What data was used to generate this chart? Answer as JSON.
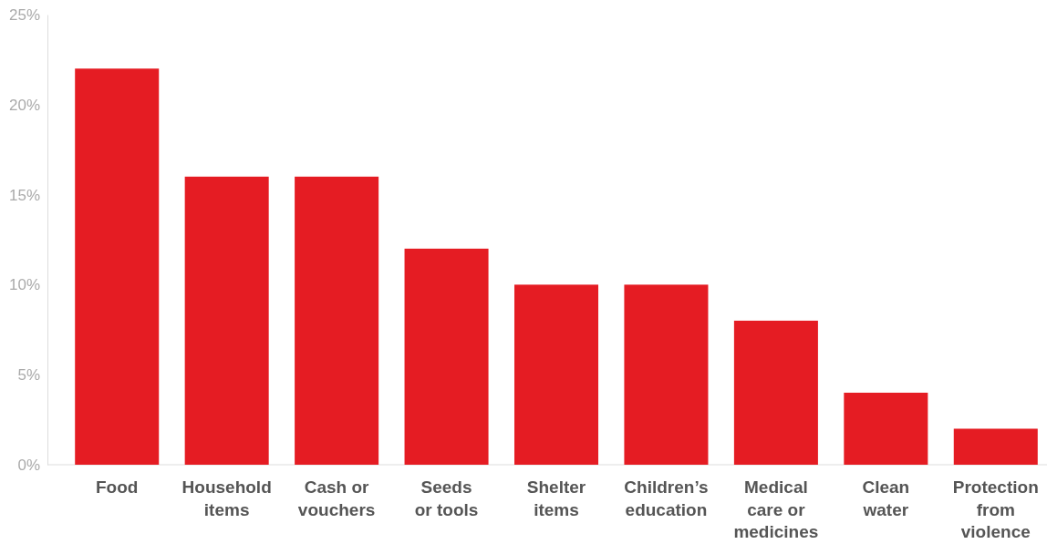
{
  "chart_data": {
    "type": "bar",
    "categories": [
      "Food",
      "Household items",
      "Cash or vouchers",
      "Seeds or tools",
      "Shelter items",
      "Children’s education",
      "Medical care or medicines",
      "Clean water",
      "Protection from violence"
    ],
    "values": [
      22,
      16,
      16,
      12,
      10,
      10,
      8,
      4,
      2
    ],
    "color": "#e51c23",
    "ylim": [
      0,
      25
    ],
    "yticks": [
      {
        "value": 0,
        "label": "0%"
      },
      {
        "value": 5,
        "label": "5%"
      },
      {
        "value": 10,
        "label": "10%"
      },
      {
        "value": 15,
        "label": "15%"
      },
      {
        "value": 20,
        "label": "20%"
      },
      {
        "value": 25,
        "label": "25%"
      }
    ],
    "grid": false
  }
}
